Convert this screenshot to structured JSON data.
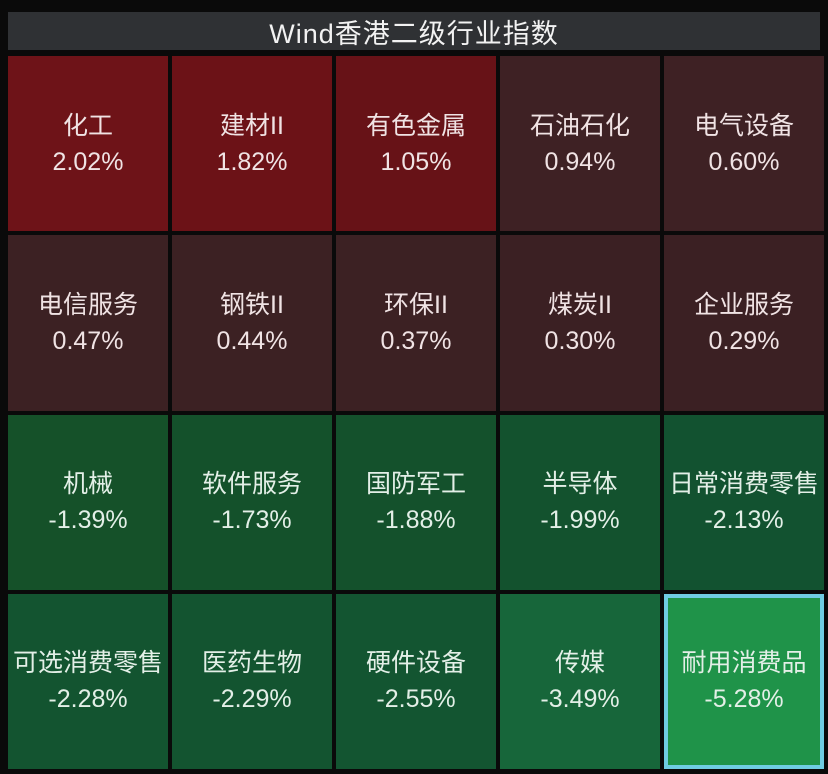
{
  "title": "Wind香港二级行业指数",
  "colors": {
    "page_bg": "#0a0a0a",
    "titlebar_bg": "#2f3134",
    "title_text": "#f2f2f2",
    "grid_line": "#0a0a0a",
    "positive_text": "#f0e3e4",
    "negative_text": "#e3efe7",
    "highlight_border": "#6fcce2"
  },
  "chart_data": {
    "type": "heatmap",
    "title": "Wind香港二级行业指数",
    "unit": "%",
    "layout": "5 columns x 4 rows, sorted descending by daily change",
    "legend_position": "none",
    "tiles": [
      {
        "name": "化工",
        "value": 2.02,
        "change": "2.02%",
        "bg": "#6e1318",
        "highlighted": false
      },
      {
        "name": "建材II",
        "value": 1.82,
        "change": "1.82%",
        "bg": "#6c1217",
        "highlighted": false
      },
      {
        "name": "有色金属",
        "value": 1.05,
        "change": "1.05%",
        "bg": "#671217",
        "highlighted": false
      },
      {
        "name": "石油石化",
        "value": 0.94,
        "change": "0.94%",
        "bg": "#3e2124",
        "highlighted": false
      },
      {
        "name": "电气设备",
        "value": 0.6,
        "change": "0.60%",
        "bg": "#3e2124",
        "highlighted": false
      },
      {
        "name": "电信服务",
        "value": 0.47,
        "change": "0.47%",
        "bg": "#3c2123",
        "highlighted": false
      },
      {
        "name": "钢铁II",
        "value": 0.44,
        "change": "0.44%",
        "bg": "#3c2123",
        "highlighted": false
      },
      {
        "name": "环保II",
        "value": 0.37,
        "change": "0.37%",
        "bg": "#3c2123",
        "highlighted": false
      },
      {
        "name": "煤炭II",
        "value": 0.3,
        "change": "0.30%",
        "bg": "#3b2023",
        "highlighted": false
      },
      {
        "name": "企业服务",
        "value": 0.29,
        "change": "0.29%",
        "bg": "#3b2023",
        "highlighted": false
      },
      {
        "name": "机械",
        "value": -1.39,
        "change": "-1.39%",
        "bg": "#155129",
        "highlighted": false
      },
      {
        "name": "软件服务",
        "value": -1.73,
        "change": "-1.73%",
        "bg": "#14512b",
        "highlighted": false
      },
      {
        "name": "国防军工",
        "value": -1.88,
        "change": "-1.88%",
        "bg": "#14512c",
        "highlighted": false
      },
      {
        "name": "半导体",
        "value": -1.99,
        "change": "-1.99%",
        "bg": "#13522e",
        "highlighted": false
      },
      {
        "name": "日常消费零售",
        "value": -2.13,
        "change": "-2.13%",
        "bg": "#125230",
        "highlighted": false
      },
      {
        "name": "可选消费零售",
        "value": -2.28,
        "change": "-2.28%",
        "bg": "#135430",
        "highlighted": false
      },
      {
        "name": "医药生物",
        "value": -2.29,
        "change": "-2.29%",
        "bg": "#135430",
        "highlighted": false
      },
      {
        "name": "硬件设备",
        "value": -2.55,
        "change": "-2.55%",
        "bg": "#135531",
        "highlighted": false
      },
      {
        "name": "传媒",
        "value": -3.49,
        "change": "-3.49%",
        "bg": "#17663a",
        "highlighted": false
      },
      {
        "name": "耐用消费品",
        "value": -5.28,
        "change": "-5.28%",
        "bg": "#1f9349",
        "highlighted": true
      }
    ]
  }
}
